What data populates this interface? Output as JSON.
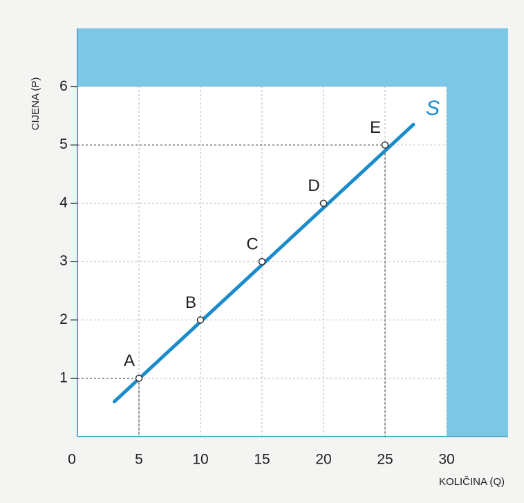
{
  "chart_data": {
    "type": "line",
    "xlabel": "KOLIČINA (Q)",
    "ylabel": "CIJENA (P)",
    "xlim": [
      0,
      35
    ],
    "ylim": [
      0,
      7
    ],
    "xticks": [
      0,
      5,
      10,
      15,
      20,
      25,
      30
    ],
    "yticks": [
      1,
      2,
      3,
      4,
      5,
      6
    ],
    "grid": true,
    "series": [
      {
        "name": "S",
        "color": "#1b8ccb",
        "x": [
          3,
          27.3
        ],
        "values": [
          0.6,
          5.35
        ]
      }
    ],
    "points": {
      "labels": [
        "A",
        "B",
        "C",
        "D",
        "E"
      ],
      "x": [
        5,
        10,
        15,
        20,
        25
      ],
      "values": [
        1,
        2,
        3,
        4,
        5
      ]
    }
  }
}
